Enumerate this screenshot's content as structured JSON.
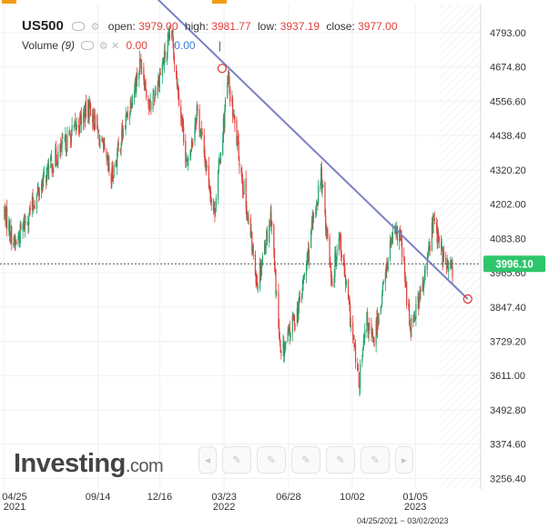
{
  "legend": {
    "symbol": "US500",
    "open_label": "open:",
    "open": "3979.00",
    "high_label": "high:",
    "high": "3981.77",
    "low_label": "low:",
    "low": "3937.19",
    "close_label": "close:",
    "close": "3977.00"
  },
  "volume": {
    "label": "Volume",
    "period": "(9)",
    "value1": "0.00",
    "value2": "0.00",
    "cursor": "|"
  },
  "logo": {
    "text": "Investing",
    "suffix": ".com"
  },
  "price_badge": "3996.10",
  "date_range": "04/25/2021 − 03/02/2023",
  "icons": [
    "chevron-left-icon",
    "draw-icon",
    "draw-icon",
    "draw-icon",
    "draw-icon",
    "draw-icon",
    "chevron-right-icon"
  ],
  "colors": {
    "up": "#26a36b",
    "down": "#e0413b",
    "trendline": "#7b7fc4",
    "badge": "#2fc56b",
    "grid": "#f0f0f0"
  },
  "chart_data": {
    "type": "candlestick",
    "title": "US500",
    "y_ticks": [
      4793.0,
      4674.8,
      4556.6,
      4438.4,
      4320.2,
      4202.0,
      4083.8,
      3965.6,
      3847.4,
      3729.2,
      3611.0,
      3492.8,
      3374.6,
      3256.4
    ],
    "y_tick_labels": [
      "4793.00",
      "4674.80",
      "4556.60",
      "4438.40",
      "4320.20",
      "4202.00",
      "4083.80",
      "3965.60",
      "3847.40",
      "3729.20",
      "3611.00",
      "3492.80",
      "3374.60",
      "3256.40"
    ],
    "ylim": [
      3220,
      4890
    ],
    "x_ticks": [
      {
        "date": "2021-04-25",
        "label": "04/25",
        "year": "2021"
      },
      {
        "date": "2021-09-14",
        "label": "09/14",
        "year": ""
      },
      {
        "date": "2021-12-16",
        "label": "12/16",
        "year": ""
      },
      {
        "date": "2022-03-23",
        "label": "03/23",
        "year": "2022"
      },
      {
        "date": "2022-06-28",
        "label": "06/28",
        "year": ""
      },
      {
        "date": "2022-10-02",
        "label": "10/02",
        "year": ""
      },
      {
        "date": "2023-01-05",
        "label": "01/05",
        "year": "2023"
      }
    ],
    "xlim": [
      "2021-04-25",
      "2023-03-02"
    ],
    "forecast_region_start": "2023-02-10",
    "current_price": 3996.1,
    "key_points": [
      {
        "date": "2021-04-25",
        "close": 4180
      },
      {
        "date": "2021-05-12",
        "close": 4060
      },
      {
        "date": "2021-07-01",
        "close": 4320
      },
      {
        "date": "2021-09-02",
        "close": 4540
      },
      {
        "date": "2021-10-04",
        "close": 4290
      },
      {
        "date": "2021-11-18",
        "close": 4700
      },
      {
        "date": "2021-12-01",
        "close": 4530
      },
      {
        "date": "2022-01-03",
        "close": 4790
      },
      {
        "date": "2022-01-27",
        "close": 4320
      },
      {
        "date": "2022-02-10",
        "close": 4530
      },
      {
        "date": "2022-03-08",
        "close": 4170
      },
      {
        "date": "2022-03-29",
        "close": 4630
      },
      {
        "date": "2022-05-12",
        "close": 3930
      },
      {
        "date": "2022-06-02",
        "close": 4170
      },
      {
        "date": "2022-06-16",
        "close": 3670
      },
      {
        "date": "2022-07-15",
        "close": 3860
      },
      {
        "date": "2022-08-16",
        "close": 4300
      },
      {
        "date": "2022-09-02",
        "close": 3930
      },
      {
        "date": "2022-09-12",
        "close": 4110
      },
      {
        "date": "2022-10-12",
        "close": 3580
      },
      {
        "date": "2022-10-24",
        "close": 3800
      },
      {
        "date": "2022-11-03",
        "close": 3720
      },
      {
        "date": "2022-11-30",
        "close": 4080
      },
      {
        "date": "2022-12-13",
        "close": 4100
      },
      {
        "date": "2022-12-28",
        "close": 3780
      },
      {
        "date": "2023-01-18",
        "close": 3930
      },
      {
        "date": "2023-02-02",
        "close": 4160
      },
      {
        "date": "2023-02-10",
        "close": 4060
      },
      {
        "date": "2023-02-22",
        "close": 3980
      },
      {
        "date": "2023-03-02",
        "close": 3977
      }
    ],
    "trendline": [
      {
        "date": "2021-12-01",
        "value": 4935
      },
      {
        "date": "2023-03-25",
        "value": 3875
      }
    ],
    "trendline_markers": [
      {
        "date": "2022-03-20",
        "value": 4670
      },
      {
        "date": "2023-03-25",
        "value": 3875
      }
    ]
  }
}
